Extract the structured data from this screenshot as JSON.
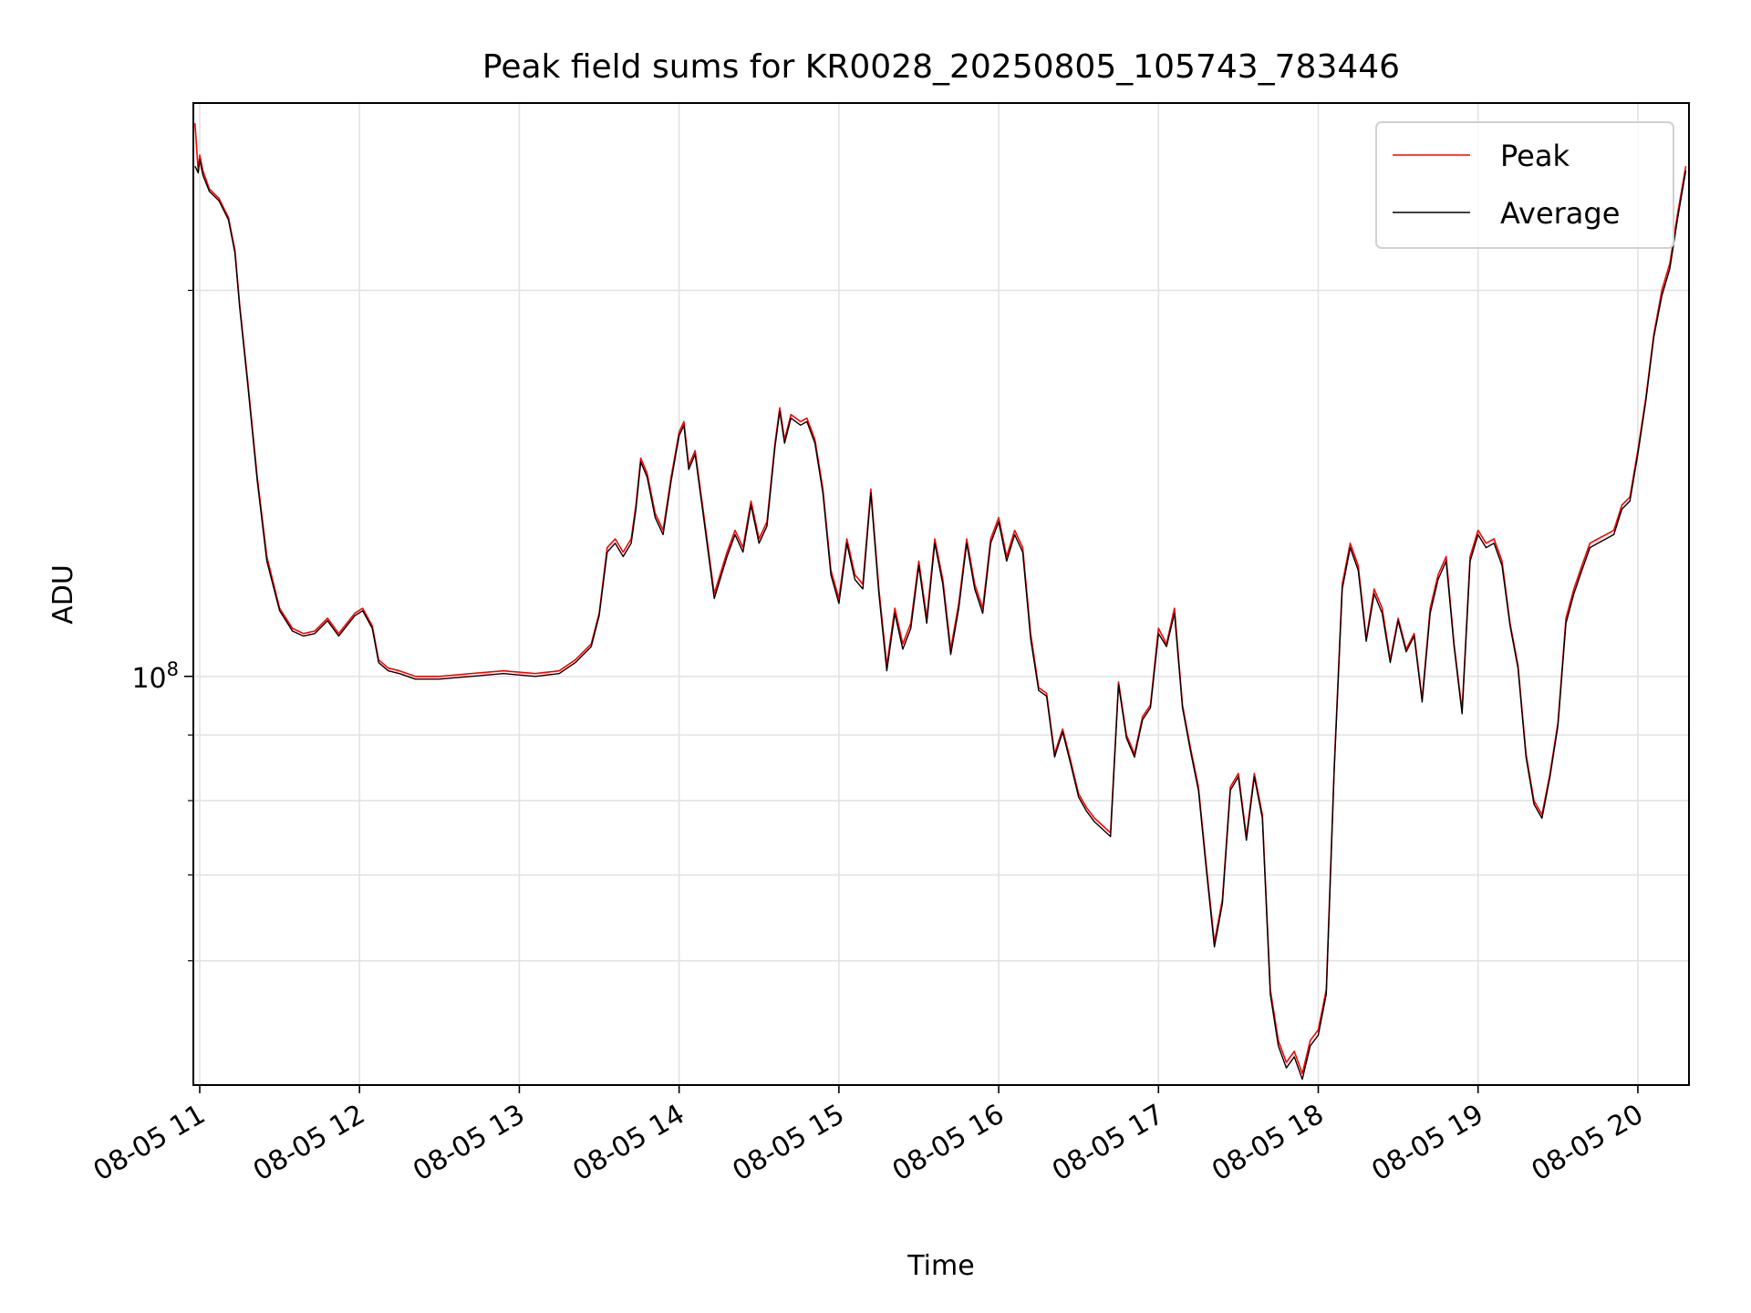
{
  "chart_data": {
    "type": "line",
    "title": "Peak field sums for KR0028_20250805_105743_783446",
    "xlabel": "Time",
    "ylabel": "ADU",
    "yscale": "log",
    "grid": true,
    "legend_placement": "top-right",
    "x_unit": "hours (2025-08-05, local clock)",
    "xlim": [
      10.96,
      20.32
    ],
    "ylim": [
      48000000,
      280000000
    ],
    "x_ticks": [
      11,
      12,
      13,
      14,
      15,
      16,
      17,
      18,
      19,
      20
    ],
    "x_tick_labels": [
      "08-05 11",
      "08-05 12",
      "08-05 13",
      "08-05 14",
      "08-05 15",
      "08-05 16",
      "08-05 17",
      "08-05 18",
      "08-05 19",
      "08-05 20"
    ],
    "y_ticks": [
      100000000
    ],
    "y_tick_label_base": "10",
    "y_tick_label_exp": "8",
    "y_minor_ticks": [
      60000000,
      70000000,
      80000000,
      90000000,
      200000000
    ],
    "series": [
      {
        "name": "Peak",
        "color": "#ff0000",
        "x": [
          10.97,
          10.99,
          11.0,
          11.02,
          11.06,
          11.12,
          11.18,
          11.22,
          11.25,
          11.3,
          11.36,
          11.42,
          11.5,
          11.58,
          11.65,
          11.72,
          11.8,
          11.87,
          11.92,
          11.97,
          12.02,
          12.08,
          12.12,
          12.18,
          12.25,
          12.35,
          12.5,
          12.7,
          12.9,
          13.1,
          13.25,
          13.35,
          13.45,
          13.5,
          13.55,
          13.6,
          13.65,
          13.7,
          13.73,
          13.76,
          13.8,
          13.85,
          13.9,
          13.95,
          14.0,
          14.03,
          14.06,
          14.1,
          14.15,
          14.22,
          14.3,
          14.35,
          14.4,
          14.45,
          14.5,
          14.55,
          14.6,
          14.63,
          14.66,
          14.7,
          14.76,
          14.8,
          14.85,
          14.9,
          14.95,
          15.0,
          15.05,
          15.1,
          15.15,
          15.2,
          15.25,
          15.3,
          15.35,
          15.4,
          15.45,
          15.5,
          15.55,
          15.6,
          15.65,
          15.7,
          15.75,
          15.8,
          15.85,
          15.9,
          15.95,
          16.0,
          16.05,
          16.1,
          16.15,
          16.2,
          16.25,
          16.3,
          16.35,
          16.4,
          16.45,
          16.5,
          16.55,
          16.6,
          16.65,
          16.7,
          16.75,
          16.8,
          16.85,
          16.9,
          16.95,
          17.0,
          17.05,
          17.1,
          17.15,
          17.2,
          17.25,
          17.3,
          17.35,
          17.4,
          17.45,
          17.5,
          17.55,
          17.6,
          17.65,
          17.7,
          17.75,
          17.8,
          17.85,
          17.9,
          17.95,
          18.0,
          18.05,
          18.1,
          18.15,
          18.2,
          18.25,
          18.3,
          18.35,
          18.4,
          18.45,
          18.5,
          18.55,
          18.6,
          18.65,
          18.7,
          18.75,
          18.8,
          18.85,
          18.9,
          18.95,
          19.0,
          19.05,
          19.1,
          19.15,
          19.2,
          19.25,
          19.3,
          19.35,
          19.4,
          19.45,
          19.5,
          19.55,
          19.6,
          19.65,
          19.7,
          19.75,
          19.8,
          19.85,
          19.9,
          19.95,
          20.0,
          20.05,
          20.1,
          20.15,
          20.2,
          20.25,
          20.3
        ],
        "values": [
          270000000,
          248000000,
          255000000,
          248000000,
          240000000,
          236000000,
          228000000,
          215000000,
          195000000,
          170000000,
          143000000,
          124000000,
          113000000,
          109000000,
          108000000,
          108500000,
          111000000,
          108000000,
          110000000,
          112000000,
          113000000,
          109500000,
          103000000,
          101500000,
          101000000,
          100000000,
          100000000,
          100500000,
          101000000,
          100500000,
          101000000,
          103000000,
          106000000,
          112000000,
          126000000,
          128000000,
          125000000,
          128000000,
          136000000,
          148000000,
          144000000,
          134000000,
          130000000,
          143000000,
          155000000,
          158000000,
          146000000,
          150000000,
          135000000,
          116000000,
          125000000,
          130000000,
          126000000,
          137000000,
          128000000,
          132000000,
          152000000,
          162000000,
          153000000,
          160000000,
          158000000,
          159000000,
          153000000,
          140000000,
          121000000,
          115000000,
          128000000,
          120000000,
          118000000,
          140000000,
          117000000,
          102000000,
          113000000,
          106000000,
          110000000,
          123000000,
          111000000,
          128000000,
          119000000,
          105000000,
          114000000,
          128000000,
          118000000,
          113000000,
          128000000,
          133000000,
          124000000,
          130000000,
          126000000,
          108000000,
          98000000,
          97000000,
          87000000,
          91000000,
          86000000,
          81000000,
          79000000,
          77500000,
          76500000,
          75500000,
          99000000,
          90000000,
          87000000,
          93000000,
          95000000,
          109000000,
          106000000,
          113000000,
          95000000,
          88000000,
          82000000,
          71000000,
          62000000,
          67000000,
          82000000,
          84000000,
          75000000,
          84000000,
          78000000,
          57000000,
          52000000,
          50000000,
          51000000,
          49000000,
          52000000,
          53000000,
          57000000,
          85000000,
          118000000,
          127000000,
          122000000,
          107000000,
          117000000,
          113000000,
          103000000,
          111000000,
          105000000,
          108000000,
          96000000,
          113000000,
          120000000,
          124000000,
          106000000,
          94000000,
          124000000,
          130000000,
          127000000,
          128000000,
          123000000,
          110000000,
          102000000,
          87000000,
          80000000,
          78000000,
          84000000,
          92000000,
          111000000,
          117000000,
          122000000,
          127000000,
          128000000,
          129000000,
          130000000,
          136000000,
          138000000,
          150000000,
          165000000,
          185000000,
          200000000,
          210000000,
          230000000,
          250000000
        ]
      },
      {
        "name": "Average",
        "color": "#000000",
        "x": [
          10.97,
          10.99,
          11.0,
          11.02,
          11.06,
          11.12,
          11.18,
          11.22,
          11.25,
          11.3,
          11.36,
          11.42,
          11.5,
          11.58,
          11.65,
          11.72,
          11.8,
          11.87,
          11.92,
          11.97,
          12.02,
          12.08,
          12.12,
          12.18,
          12.25,
          12.35,
          12.5,
          12.7,
          12.9,
          13.1,
          13.25,
          13.35,
          13.45,
          13.5,
          13.55,
          13.6,
          13.65,
          13.7,
          13.73,
          13.76,
          13.8,
          13.85,
          13.9,
          13.95,
          14.0,
          14.03,
          14.06,
          14.1,
          14.15,
          14.22,
          14.3,
          14.35,
          14.4,
          14.45,
          14.5,
          14.55,
          14.6,
          14.63,
          14.66,
          14.7,
          14.76,
          14.8,
          14.85,
          14.9,
          14.95,
          15.0,
          15.05,
          15.1,
          15.15,
          15.2,
          15.25,
          15.3,
          15.35,
          15.4,
          15.45,
          15.5,
          15.55,
          15.6,
          15.65,
          15.7,
          15.75,
          15.8,
          15.85,
          15.9,
          15.95,
          16.0,
          16.05,
          16.1,
          16.15,
          16.2,
          16.25,
          16.3,
          16.35,
          16.4,
          16.45,
          16.5,
          16.55,
          16.6,
          16.65,
          16.7,
          16.75,
          16.8,
          16.85,
          16.9,
          16.95,
          17.0,
          17.05,
          17.1,
          17.15,
          17.2,
          17.25,
          17.3,
          17.35,
          17.4,
          17.45,
          17.5,
          17.55,
          17.6,
          17.65,
          17.7,
          17.75,
          17.8,
          17.85,
          17.9,
          17.95,
          18.0,
          18.05,
          18.1,
          18.15,
          18.2,
          18.25,
          18.3,
          18.35,
          18.4,
          18.45,
          18.5,
          18.55,
          18.6,
          18.65,
          18.7,
          18.75,
          18.8,
          18.85,
          18.9,
          18.95,
          19.0,
          19.05,
          19.1,
          19.15,
          19.2,
          19.25,
          19.3,
          19.35,
          19.4,
          19.45,
          19.5,
          19.55,
          19.6,
          19.65,
          19.7,
          19.75,
          19.8,
          19.85,
          19.9,
          19.95,
          20.0,
          20.05,
          20.1,
          20.15,
          20.2,
          20.25,
          20.3
        ],
        "values": [
          250000000,
          247000000,
          253000000,
          246000000,
          239000000,
          235000000,
          227000000,
          214000000,
          194000000,
          169000000,
          142000000,
          123000000,
          112500000,
          108500000,
          107500000,
          108000000,
          110500000,
          107500000,
          109500000,
          111500000,
          112500000,
          109000000,
          102500000,
          101000000,
          100500000,
          99500000,
          99500000,
          100000000,
          100500000,
          100000000,
          100500000,
          102500000,
          105500000,
          111500000,
          125000000,
          127000000,
          124000000,
          127000000,
          135000000,
          147000000,
          143000000,
          133000000,
          129000000,
          142000000,
          154000000,
          157000000,
          145000000,
          149000000,
          134000000,
          115000000,
          124000000,
          129000000,
          125000000,
          136000000,
          127000000,
          131000000,
          151000000,
          161000000,
          152000000,
          159000000,
          157000000,
          158000000,
          152000000,
          139000000,
          120000000,
          114000000,
          127000000,
          119000000,
          117000000,
          139000000,
          116000000,
          101000000,
          112000000,
          105000000,
          109000000,
          122000000,
          110000000,
          127000000,
          118000000,
          104000000,
          113000000,
          127000000,
          117000000,
          112000000,
          127000000,
          132000000,
          123000000,
          129000000,
          125000000,
          107000000,
          97500000,
          96500000,
          86500000,
          90500000,
          85500000,
          80500000,
          78500000,
          77000000,
          76000000,
          75000000,
          98500000,
          89500000,
          86500000,
          92500000,
          94500000,
          108000000,
          105500000,
          112000000,
          94500000,
          87500000,
          81500000,
          70500000,
          61500000,
          66500000,
          81500000,
          83500000,
          74500000,
          83500000,
          77500000,
          56500000,
          51500000,
          49500000,
          50500000,
          48500000,
          51500000,
          52500000,
          56500000,
          84500000,
          117000000,
          126000000,
          121000000,
          106500000,
          116000000,
          112000000,
          102500000,
          110500000,
          104500000,
          107500000,
          95500000,
          112000000,
          119000000,
          123000000,
          105500000,
          93500000,
          123000000,
          129000000,
          126000000,
          127000000,
          122000000,
          109500000,
          101500000,
          86500000,
          79500000,
          77500000,
          83500000,
          91500000,
          110000000,
          116000000,
          121000000,
          126000000,
          127000000,
          128000000,
          129000000,
          135000000,
          137000000,
          149000000,
          164000000,
          184000000,
          198000000,
          208000000,
          228000000,
          248000000
        ]
      }
    ]
  }
}
